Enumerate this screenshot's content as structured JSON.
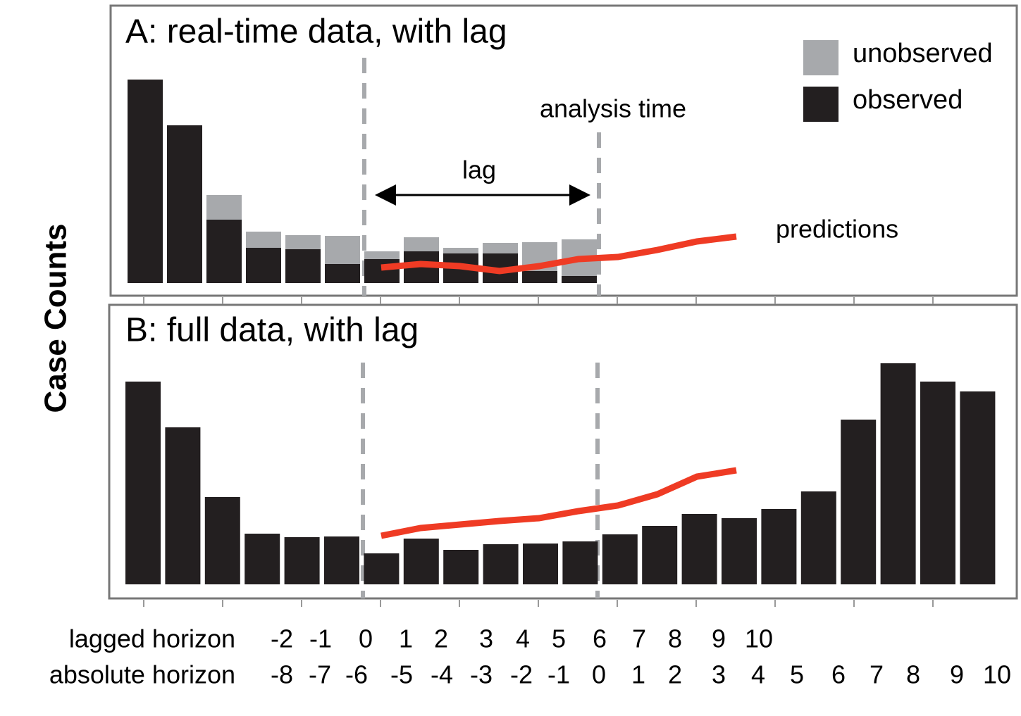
{
  "y_label": "Case Counts",
  "chart_data": [
    {
      "type": "bar",
      "title": "A: real-time data, with lag",
      "stacked": true,
      "ylim": [
        0,
        300
      ],
      "series": [
        {
          "name": "unobserved",
          "color": "#a7a9ac",
          "values": [
            0,
            0,
            35,
            23,
            20,
            40,
            11,
            20,
            8,
            15,
            41,
            52
          ]
        },
        {
          "name": "observed",
          "color": "#231f20",
          "values": [
            289,
            224,
            90,
            50,
            48,
            27,
            34,
            45,
            42,
            42,
            17,
            10
          ]
        },
        {
          "name": "predictions",
          "type": "line",
          "color": "#ef3b24",
          "values": [
            22,
            27,
            24,
            17,
            24,
            34,
            37,
            47,
            59,
            66
          ]
        }
      ],
      "annotations": [
        "analysis time",
        "lag"
      ]
    },
    {
      "type": "bar",
      "title": "B: full data, with lag",
      "ylim": [
        0,
        330
      ],
      "series": [
        {
          "color": "#231f20",
          "values": [
            288,
            223,
            124,
            72,
            67,
            68,
            44,
            65,
            49,
            57,
            58,
            61,
            71,
            83,
            100,
            94,
            107,
            132,
            234,
            314,
            288,
            274
          ]
        },
        {
          "type": "line",
          "color": "#ef3b24",
          "values": [
            69,
            80,
            85,
            90,
            94,
            104,
            112,
            128,
            153,
            162
          ]
        }
      ]
    }
  ],
  "x_labels": [
    {
      "label": "lagged horizon",
      "ticks": [
        -2,
        -1,
        0,
        1,
        2,
        3,
        4,
        5,
        6,
        7,
        8,
        9,
        10
      ]
    },
    {
      "label": "absolute horizon",
      "ticks": [
        -8,
        -7,
        -6,
        -5,
        -4,
        -3,
        -2,
        -1,
        0,
        1,
        2,
        3,
        4,
        5,
        6,
        7,
        8,
        9,
        10
      ]
    }
  ]
}
